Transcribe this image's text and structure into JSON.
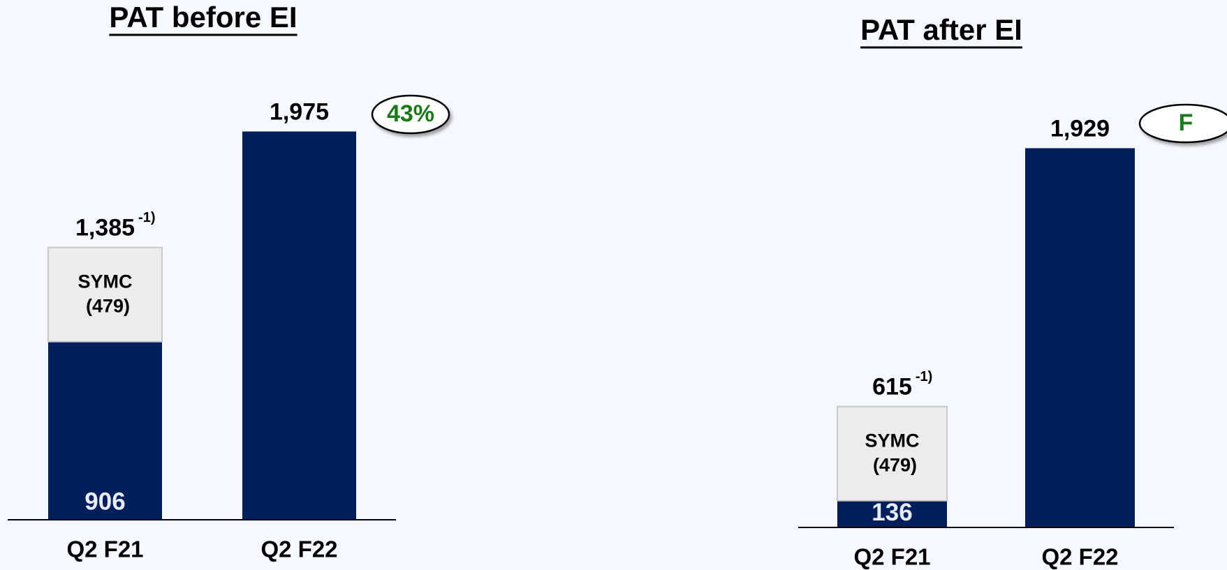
{
  "chart_data": [
    {
      "type": "stacked-bar",
      "title": "PAT before EI",
      "categories": [
        "Q2 F21",
        "Q2 F22"
      ],
      "series": [
        {
          "name": null,
          "color": "#001f5c",
          "values": [
            906,
            1975
          ]
        },
        {
          "name": "SYMC",
          "color": "#ececec",
          "values": [
            479,
            null
          ],
          "value_labels": [
            "(479)",
            null
          ]
        }
      ],
      "total_labels": [
        "1,385",
        "1,975"
      ],
      "footnote_marks": [
        "-1)",
        null
      ],
      "badge": "43%"
    },
    {
      "type": "stacked-bar",
      "title": "PAT after EI",
      "categories": [
        "Q2 F21",
        "Q2 F22"
      ],
      "series": [
        {
          "name": null,
          "color": "#001f5c",
          "values": [
            136,
            1929
          ]
        },
        {
          "name": "SYMC",
          "color": "#ececec",
          "values": [
            479,
            null
          ],
          "value_labels": [
            "(479)",
            null
          ]
        }
      ],
      "total_labels": [
        "615",
        "1,929"
      ],
      "footnote_marks": [
        "-1)",
        null
      ],
      "badge": "F"
    }
  ]
}
